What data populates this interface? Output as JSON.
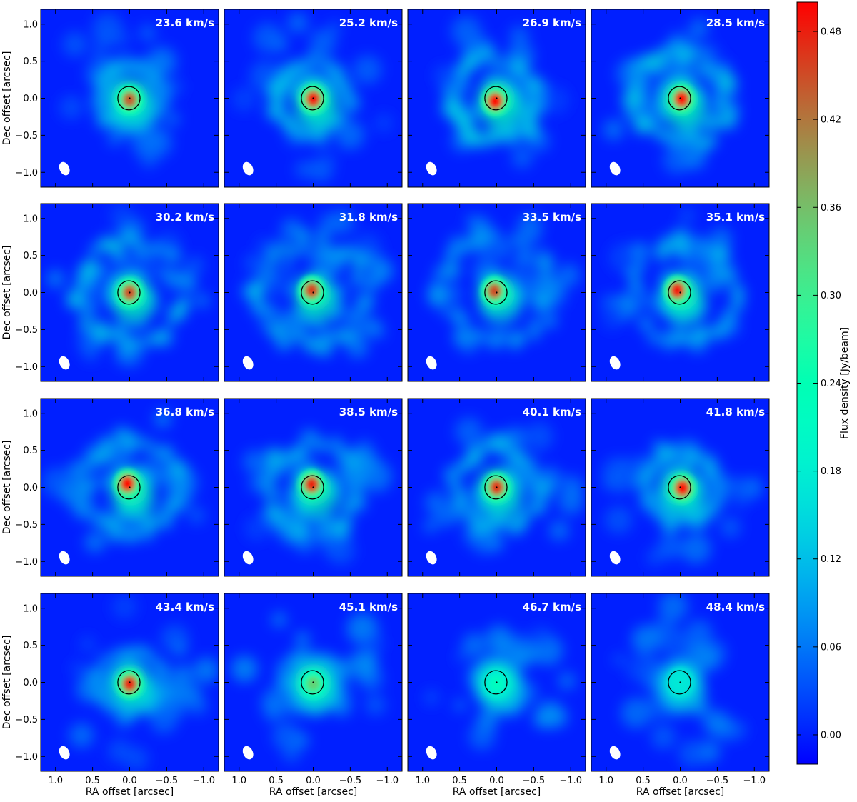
{
  "chart_data": {
    "type": "heatmap",
    "title": "",
    "layout": "4x4 channel maps",
    "xlabel": "RA offset [arcsec]",
    "ylabel": "Dec offset [arcsec]",
    "xlim": [
      1.2,
      -1.2
    ],
    "ylim": [
      -1.2,
      1.2
    ],
    "x_axis_reversed": true,
    "xticks": [
      1.0,
      0.5,
      0.0,
      -0.5,
      -1.0
    ],
    "xtick_labels": [
      "1.0",
      "0.5",
      "0.0",
      "−0.5",
      "−1.0"
    ],
    "yticks": [
      1.0,
      0.5,
      0.0,
      -0.5,
      -1.0
    ],
    "ytick_labels": [
      "1.0",
      "0.5",
      "0.0",
      "−0.5",
      "−1.0"
    ],
    "colormap": "rainbow",
    "colorbar": {
      "label": "Flux density [Jy/beam]",
      "range": [
        -0.02,
        0.5
      ],
      "ticks": [
        0.0,
        0.06,
        0.12,
        0.18,
        0.24,
        0.3,
        0.36,
        0.42,
        0.48
      ],
      "tick_labels": [
        "0.00",
        "0.06",
        "0.12",
        "0.18",
        "0.24",
        "0.30",
        "0.36",
        "0.42",
        "0.48"
      ]
    },
    "beam": {
      "ra": 0.88,
      "dec": -0.95,
      "major_arcsec": 0.13,
      "minor_arcsec": 0.09
    },
    "stellar_contour": {
      "ra": 0.01,
      "dec": 0.0,
      "radius_arcsec": 0.15
    },
    "panels": [
      {
        "velocity_label": "23.6 km/s",
        "velocity_kms": 23.6,
        "peak": 0.44,
        "core_offset": [
          0.0,
          -0.02
        ],
        "ring": 0.12,
        "shell": 0.08,
        "ring_radius": 0.42
      },
      {
        "velocity_label": "25.2 km/s",
        "velocity_kms": 25.2,
        "peak": 0.49,
        "core_offset": [
          0.0,
          -0.01
        ],
        "ring": 0.14,
        "shell": 0.08,
        "ring_radius": 0.5
      },
      {
        "velocity_label": "26.9 km/s",
        "velocity_kms": 26.9,
        "peak": 0.5,
        "core_offset": [
          0.02,
          -0.04
        ],
        "ring": 0.15,
        "shell": 0.09,
        "ring_radius": 0.58
      },
      {
        "velocity_label": "28.5 km/s",
        "velocity_kms": 28.5,
        "peak": 0.5,
        "core_offset": [
          -0.02,
          -0.01
        ],
        "ring": 0.16,
        "shell": 0.09,
        "ring_radius": 0.65
      },
      {
        "velocity_label": "30.2 km/s",
        "velocity_kms": 30.2,
        "peak": 0.45,
        "core_offset": [
          0.0,
          0.0
        ],
        "ring": 0.15,
        "shell": 0.1,
        "ring_radius": 0.7
      },
      {
        "velocity_label": "31.8 km/s",
        "velocity_kms": 31.8,
        "peak": 0.46,
        "core_offset": [
          0.02,
          0.03
        ],
        "ring": 0.14,
        "shell": 0.1,
        "ring_radius": 0.72
      },
      {
        "velocity_label": "33.5 km/s",
        "velocity_kms": 33.5,
        "peak": 0.45,
        "core_offset": [
          0.03,
          0.02
        ],
        "ring": 0.12,
        "shell": 0.1,
        "ring_radius": 0.72
      },
      {
        "velocity_label": "35.1 km/s",
        "velocity_kms": 35.1,
        "peak": 0.49,
        "core_offset": [
          0.04,
          0.03
        ],
        "ring": 0.13,
        "shell": 0.1,
        "ring_radius": 0.7
      },
      {
        "velocity_label": "36.8 km/s",
        "velocity_kms": 36.8,
        "peak": 0.5,
        "core_offset": [
          0.03,
          0.05
        ],
        "ring": 0.14,
        "shell": 0.1,
        "ring_radius": 0.66
      },
      {
        "velocity_label": "38.5 km/s",
        "velocity_kms": 38.5,
        "peak": 0.48,
        "core_offset": [
          0.02,
          0.04
        ],
        "ring": 0.14,
        "shell": 0.1,
        "ring_radius": 0.62
      },
      {
        "velocity_label": "40.1 km/s",
        "velocity_kms": 40.1,
        "peak": 0.47,
        "core_offset": [
          0.0,
          0.0
        ],
        "ring": 0.13,
        "shell": 0.09,
        "ring_radius": 0.56
      },
      {
        "velocity_label": "41.8 km/s",
        "velocity_kms": 41.8,
        "peak": 0.5,
        "core_offset": [
          -0.03,
          -0.01
        ],
        "ring": 0.12,
        "shell": 0.09,
        "ring_radius": 0.5
      },
      {
        "velocity_label": "43.4 km/s",
        "velocity_kms": 43.4,
        "peak": 0.48,
        "core_offset": [
          0.0,
          -0.02
        ],
        "ring": 0.11,
        "shell": 0.1,
        "ring_radius": 0.44
      },
      {
        "velocity_label": "45.1 km/s",
        "velocity_kms": 45.1,
        "peak": 0.34,
        "core_offset": [
          0.0,
          -0.02
        ],
        "ring": 0.1,
        "shell": 0.11,
        "ring_radius": 0.36
      },
      {
        "velocity_label": "46.7 km/s",
        "velocity_kms": 46.7,
        "peak": 0.22,
        "core_offset": [
          0.0,
          -0.02
        ],
        "ring": 0.09,
        "shell": 0.11,
        "ring_radius": 0.28
      },
      {
        "velocity_label": "48.4 km/s",
        "velocity_kms": 48.4,
        "peak": 0.17,
        "core_offset": [
          0.0,
          0.0
        ],
        "ring": 0.08,
        "shell": 0.1,
        "ring_radius": 0.22
      }
    ]
  }
}
